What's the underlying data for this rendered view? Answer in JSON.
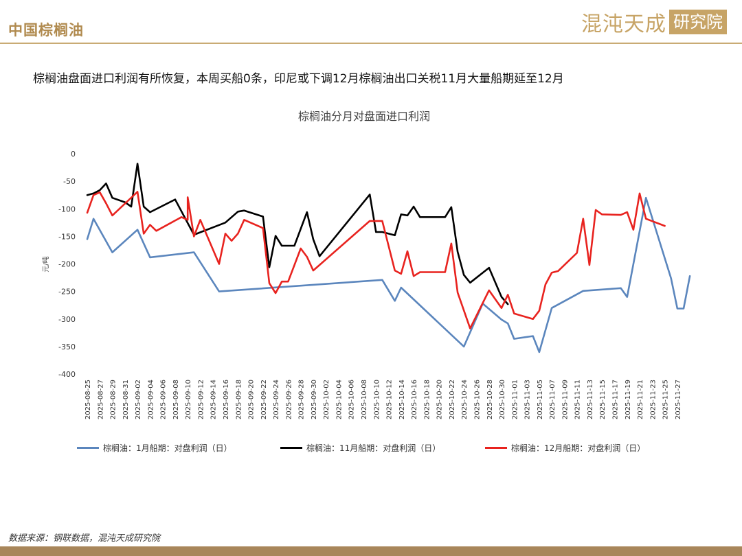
{
  "header": {
    "section_title": "中国棕榈油",
    "logo_text": "混沌天成",
    "logo_box_text": "研究院"
  },
  "headline": "棕榈油盘面进口利润有所恢复，本周买船0条，印尼或下调12月棕榈油出口关税11月大量船期延至12月",
  "source": "数据来源：钢联数据，混沌天成研究院",
  "colors": {
    "accent": "#b08a4e",
    "series_jan": "#5b86bd",
    "series_nov": "#000000",
    "series_dec": "#e8231f"
  },
  "chart_data": {
    "type": "line",
    "title": "棕榈油分月对盘面进口利润",
    "ylabel": "元/吨",
    "xlabel": "",
    "ylim": [
      -400,
      0
    ],
    "yticks": [
      0,
      -50,
      -100,
      -150,
      -200,
      -250,
      -300,
      -350,
      -400
    ],
    "x_start": "2025-08-25",
    "x_end": "2025-11-28",
    "xtick_labels": [
      "2025-08-25",
      "2025-08-27",
      "2025-08-29",
      "2025-08-31",
      "2025-09-02",
      "2025-09-04",
      "2025-09-06",
      "2025-09-08",
      "2025-09-10",
      "2025-09-12",
      "2025-09-14",
      "2025-09-16",
      "2025-09-18",
      "2025-09-20",
      "2025-09-22",
      "2025-09-24",
      "2025-09-26",
      "2025-09-28",
      "2025-09-30",
      "2025-10-02",
      "2025-10-04",
      "2025-10-06",
      "2025-10-08",
      "2025-10-10",
      "2025-10-12",
      "2025-10-14",
      "2025-10-16",
      "2025-10-18",
      "2025-10-20",
      "2025-10-22",
      "2025-10-24",
      "2025-10-26",
      "2025-10-28",
      "2025-10-30",
      "2025-11-01",
      "2025-11-03",
      "2025-11-05",
      "2025-11-07",
      "2025-11-09",
      "2025-11-11",
      "2025-11-13",
      "2025-11-15",
      "2025-11-17",
      "2025-11-19",
      "2025-11-21",
      "2025-11-23",
      "2025-11-25",
      "2025-11-27"
    ],
    "series": [
      {
        "name": "棕榈油：1月船期：对盘利润（日）",
        "color": "#5b86bd",
        "points": [
          [
            "2025-08-25",
            -155
          ],
          [
            "2025-08-26",
            -118
          ],
          [
            "2025-08-29",
            -179
          ],
          [
            "2025-09-02",
            -138
          ],
          [
            "2025-09-04",
            -188
          ],
          [
            "2025-09-11",
            -179
          ],
          [
            "2025-09-15",
            -250
          ],
          [
            "2025-10-11",
            -229
          ],
          [
            "2025-10-13",
            -267
          ],
          [
            "2025-10-14",
            -243
          ],
          [
            "2025-10-24",
            -350
          ],
          [
            "2025-10-27",
            -272
          ],
          [
            "2025-10-30",
            -301
          ],
          [
            "2025-10-31",
            -308
          ],
          [
            "2025-11-01",
            -336
          ],
          [
            "2025-11-04",
            -331
          ],
          [
            "2025-11-05",
            -360
          ],
          [
            "2025-11-07",
            -280
          ],
          [
            "2025-11-12",
            -249
          ],
          [
            "2025-11-18",
            -244
          ],
          [
            "2025-11-19",
            -260
          ],
          [
            "2025-11-22",
            -80
          ],
          [
            "2025-11-26",
            -226
          ],
          [
            "2025-11-27",
            -281
          ],
          [
            "2025-11-28",
            -281
          ],
          [
            "2025-11-29",
            -222
          ]
        ]
      },
      {
        "name": "棕榈油：11月船期：对盘利润（日）",
        "color": "#000000",
        "points": [
          [
            "2025-08-25",
            -75
          ],
          [
            "2025-08-26",
            -72
          ],
          [
            "2025-08-27",
            -66
          ],
          [
            "2025-08-28",
            -54
          ],
          [
            "2025-08-29",
            -80
          ],
          [
            "2025-08-31",
            -88
          ],
          [
            "2025-09-01",
            -96
          ],
          [
            "2025-09-02",
            -18
          ],
          [
            "2025-09-03",
            -96
          ],
          [
            "2025-09-04",
            -106
          ],
          [
            "2025-09-08",
            -83
          ],
          [
            "2025-09-11",
            -147
          ],
          [
            "2025-09-16",
            -125
          ],
          [
            "2025-09-18",
            -105
          ],
          [
            "2025-09-19",
            -103
          ],
          [
            "2025-09-22",
            -114
          ],
          [
            "2025-09-23",
            -206
          ],
          [
            "2025-09-24",
            -149
          ],
          [
            "2025-09-25",
            -167
          ],
          [
            "2025-09-27",
            -167
          ],
          [
            "2025-09-29",
            -106
          ],
          [
            "2025-09-30",
            -155
          ],
          [
            "2025-10-01",
            -186
          ],
          [
            "2025-10-09",
            -74
          ],
          [
            "2025-10-10",
            -142
          ],
          [
            "2025-10-11",
            -142
          ],
          [
            "2025-10-13",
            -148
          ],
          [
            "2025-10-14",
            -110
          ],
          [
            "2025-10-15",
            -112
          ],
          [
            "2025-10-16",
            -96
          ],
          [
            "2025-10-17",
            -115
          ],
          [
            "2025-10-21",
            -115
          ],
          [
            "2025-10-22",
            -97
          ],
          [
            "2025-10-23",
            -178
          ],
          [
            "2025-10-24",
            -220
          ],
          [
            "2025-10-25",
            -234
          ],
          [
            "2025-10-28",
            -207
          ],
          [
            "2025-10-30",
            -260
          ],
          [
            "2025-10-31",
            -273
          ]
        ]
      },
      {
        "name": "棕榈油：12月船期：对盘利润（日）",
        "color": "#e8231f",
        "points": [
          [
            "2025-08-25",
            -107
          ],
          [
            "2025-08-26",
            -75
          ],
          [
            "2025-08-27",
            -70
          ],
          [
            "2025-08-28",
            -90
          ],
          [
            "2025-08-29",
            -112
          ],
          [
            "2025-09-02",
            -69
          ],
          [
            "2025-09-03",
            -145
          ],
          [
            "2025-09-04",
            -129
          ],
          [
            "2025-09-05",
            -140
          ],
          [
            "2025-09-09",
            -115
          ],
          [
            "2025-09-10",
            -120
          ],
          [
            "2025-09-10",
            -79
          ],
          [
            "2025-09-11",
            -150
          ],
          [
            "2025-09-12",
            -120
          ],
          [
            "2025-09-15",
            -200
          ],
          [
            "2025-09-16",
            -145
          ],
          [
            "2025-09-17",
            -158
          ],
          [
            "2025-09-18",
            -145
          ],
          [
            "2025-09-19",
            -120
          ],
          [
            "2025-09-22",
            -135
          ],
          [
            "2025-09-23",
            -235
          ],
          [
            "2025-09-24",
            -253
          ],
          [
            "2025-09-25",
            -232
          ],
          [
            "2025-09-26",
            -232
          ],
          [
            "2025-09-28",
            -172
          ],
          [
            "2025-09-29",
            -187
          ],
          [
            "2025-09-30",
            -212
          ],
          [
            "2025-10-09",
            -122
          ],
          [
            "2025-10-11",
            -122
          ],
          [
            "2025-10-13",
            -212
          ],
          [
            "2025-10-14",
            -218
          ],
          [
            "2025-10-15",
            -177
          ],
          [
            "2025-10-16",
            -222
          ],
          [
            "2025-10-17",
            -215
          ],
          [
            "2025-10-21",
            -215
          ],
          [
            "2025-10-22",
            -163
          ],
          [
            "2025-10-23",
            -252
          ],
          [
            "2025-10-25",
            -317
          ],
          [
            "2025-10-28",
            -248
          ],
          [
            "2025-10-30",
            -280
          ],
          [
            "2025-10-31",
            -256
          ],
          [
            "2025-11-01",
            -290
          ],
          [
            "2025-11-04",
            -300
          ],
          [
            "2025-11-05",
            -285
          ],
          [
            "2025-11-06",
            -237
          ],
          [
            "2025-11-07",
            -216
          ],
          [
            "2025-11-08",
            -213
          ],
          [
            "2025-11-11",
            -180
          ],
          [
            "2025-11-12",
            -118
          ],
          [
            "2025-11-13",
            -202
          ],
          [
            "2025-11-14",
            -102
          ],
          [
            "2025-11-15",
            -110
          ],
          [
            "2025-11-18",
            -111
          ],
          [
            "2025-11-19",
            -106
          ],
          [
            "2025-11-20",
            -138
          ],
          [
            "2025-11-21",
            -72
          ],
          [
            "2025-11-22",
            -118
          ],
          [
            "2025-11-25",
            -131
          ]
        ]
      }
    ]
  }
}
